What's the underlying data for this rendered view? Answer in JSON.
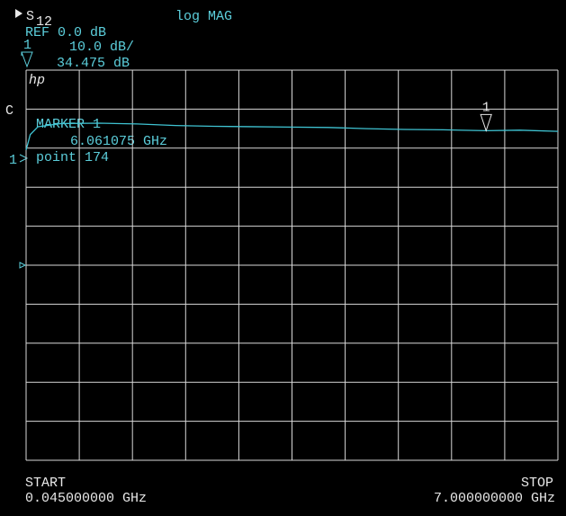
{
  "chart_data": {
    "type": "line",
    "parameter": "S",
    "parameter_sub": "12",
    "format": "log MAG",
    "ref_label": "REF 0.0 dB",
    "ref": 0,
    "channel_marker": "1",
    "scale_label": "10.0 dB/",
    "logo": "hp",
    "channel_flag": "C",
    "x": [
      0.045,
      0.1,
      0.2,
      0.5,
      1.0,
      1.5,
      2.0,
      2.5,
      3.0,
      3.5,
      4.0,
      4.5,
      5.0,
      5.5,
      6.061075,
      6.5,
      7.0
    ],
    "series": [
      {
        "color": "#3fc3d2",
        "values": [
          29.5,
          33.5,
          35.5,
          36.3,
          36.4,
          36.2,
          35.8,
          35.6,
          35.5,
          35.4,
          35.3,
          35.0,
          34.8,
          34.7,
          34.475,
          34.6,
          34.3
        ]
      }
    ],
    "marker": {
      "name": "1",
      "title": "MARKER 1",
      "x": 6.061075,
      "value": 34.475,
      "x_label": "6.061075 GHz",
      "value_label": "34.475 dB",
      "point_label": "point 174"
    },
    "start_label": "START",
    "start_value": "0.045000000 GHz",
    "stop_label": "STOP",
    "stop_value": "7.000000000 GHz",
    "xlim": [
      0.045,
      7.0
    ],
    "xticks": [
      0.045,
      0.7405,
      1.436,
      2.1315,
      2.827,
      3.5225,
      4.218,
      4.9135,
      5.609,
      6.3045,
      7.0
    ],
    "ylim": [
      -50,
      50
    ],
    "yticks": [
      -50,
      -40,
      -30,
      -20,
      -10,
      0,
      10,
      20,
      30,
      40,
      50
    ],
    "grid": true
  }
}
